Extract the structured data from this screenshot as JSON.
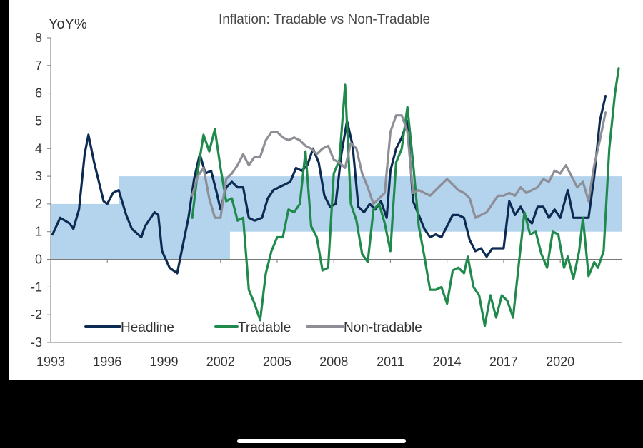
{
  "chart_data": {
    "type": "line",
    "title": "Inflation:  Tradable  vs  Non-Tradable",
    "ylabel": "YoY%",
    "xlabel": "",
    "ylim": [
      -3,
      8
    ],
    "yticks": [
      -3,
      -2,
      -1,
      0,
      1,
      2,
      3,
      4,
      5,
      6,
      7,
      8
    ],
    "xlim": [
      1993,
      2023.25
    ],
    "xticks": [
      "1993",
      "1996",
      "1999",
      "2002",
      "2005",
      "2008",
      "2011",
      "2014",
      "2017",
      "2020"
    ],
    "grid": false,
    "legend_position": "bottom-left",
    "target_band": {
      "color": "#b3d4ec",
      "segments": [
        {
          "x_start": 1993,
          "x_end": 1996.6,
          "low": 0,
          "high": 2
        },
        {
          "x_start": 1996.6,
          "x_end": 2002.5,
          "low": 0,
          "high": 3
        },
        {
          "x_start": 2002.5,
          "x_end": 2023.25,
          "low": 1,
          "high": 3
        }
      ]
    },
    "series": [
      {
        "name": "Headline",
        "color": "#0d2b52",
        "points": [
          [
            1993.1,
            0.9
          ],
          [
            1993.5,
            1.5
          ],
          [
            1994.0,
            1.3
          ],
          [
            1994.2,
            1.1
          ],
          [
            1994.5,
            1.8
          ],
          [
            1994.8,
            3.8
          ],
          [
            1995.0,
            4.5
          ],
          [
            1995.3,
            3.5
          ],
          [
            1995.8,
            2.1
          ],
          [
            1996.0,
            2.0
          ],
          [
            1996.3,
            2.4
          ],
          [
            1996.6,
            2.5
          ],
          [
            1997.0,
            1.6
          ],
          [
            1997.3,
            1.1
          ],
          [
            1997.8,
            0.8
          ],
          [
            1998.0,
            1.2
          ],
          [
            1998.5,
            1.7
          ],
          [
            1998.7,
            1.6
          ],
          [
            1998.9,
            0.3
          ],
          [
            1999.3,
            -0.3
          ],
          [
            1999.7,
            -0.5
          ],
          [
            2000.0,
            0.5
          ],
          [
            2000.3,
            1.5
          ],
          [
            2000.6,
            2.9
          ],
          [
            2000.9,
            3.8
          ],
          [
            2001.2,
            3.1
          ],
          [
            2001.5,
            3.2
          ],
          [
            2001.8,
            2.4
          ],
          [
            2002.0,
            1.8
          ],
          [
            2002.3,
            2.6
          ],
          [
            2002.6,
            2.8
          ],
          [
            2002.9,
            2.6
          ],
          [
            2003.2,
            2.6
          ],
          [
            2003.5,
            1.5
          ],
          [
            2003.8,
            1.4
          ],
          [
            2004.2,
            1.5
          ],
          [
            2004.5,
            2.2
          ],
          [
            2004.8,
            2.5
          ],
          [
            2005.1,
            2.6
          ],
          [
            2005.4,
            2.7
          ],
          [
            2005.7,
            2.8
          ],
          [
            2006.0,
            3.3
          ],
          [
            2006.3,
            3.2
          ],
          [
            2006.6,
            3.4
          ],
          [
            2006.9,
            4.0
          ],
          [
            2007.2,
            3.5
          ],
          [
            2007.5,
            2.3
          ],
          [
            2007.8,
            1.9
          ],
          [
            2008.1,
            2.0
          ],
          [
            2008.4,
            3.8
          ],
          [
            2008.7,
            5.0
          ],
          [
            2009.0,
            4.1
          ],
          [
            2009.3,
            1.9
          ],
          [
            2009.6,
            1.7
          ],
          [
            2009.9,
            2.0
          ],
          [
            2010.2,
            1.8
          ],
          [
            2010.5,
            2.1
          ],
          [
            2010.8,
            1.5
          ],
          [
            2011.0,
            3.2
          ],
          [
            2011.3,
            4.0
          ],
          [
            2011.6,
            4.4
          ],
          [
            2011.9,
            5.0
          ],
          [
            2012.2,
            2.1
          ],
          [
            2012.5,
            1.6
          ],
          [
            2012.8,
            1.1
          ],
          [
            2013.1,
            0.8
          ],
          [
            2013.4,
            0.9
          ],
          [
            2013.7,
            0.8
          ],
          [
            2014.0,
            1.2
          ],
          [
            2014.3,
            1.6
          ],
          [
            2014.6,
            1.6
          ],
          [
            2014.9,
            1.5
          ],
          [
            2015.2,
            0.7
          ],
          [
            2015.5,
            0.3
          ],
          [
            2015.8,
            0.4
          ],
          [
            2016.1,
            0.1
          ],
          [
            2016.4,
            0.4
          ],
          [
            2016.7,
            0.4
          ],
          [
            2017.0,
            0.4
          ],
          [
            2017.3,
            2.1
          ],
          [
            2017.6,
            1.6
          ],
          [
            2017.9,
            1.9
          ],
          [
            2018.2,
            1.5
          ],
          [
            2018.5,
            1.3
          ],
          [
            2018.8,
            1.9
          ],
          [
            2019.1,
            1.9
          ],
          [
            2019.4,
            1.5
          ],
          [
            2019.7,
            1.8
          ],
          [
            2020.0,
            1.5
          ],
          [
            2020.4,
            2.5
          ],
          [
            2020.7,
            1.5
          ],
          [
            2021.0,
            1.5
          ],
          [
            2021.5,
            1.5
          ],
          [
            2021.8,
            3.0
          ],
          [
            2022.1,
            5.0
          ],
          [
            2022.4,
            5.9
          ]
        ]
      },
      {
        "name": "Tradable",
        "color": "#1f8a4c",
        "points": [
          [
            2000.5,
            1.5
          ],
          [
            2000.8,
            3.2
          ],
          [
            2001.1,
            4.5
          ],
          [
            2001.4,
            3.9
          ],
          [
            2001.7,
            4.7
          ],
          [
            2002.0,
            3.3
          ],
          [
            2002.3,
            2.1
          ],
          [
            2002.6,
            2.2
          ],
          [
            2002.9,
            1.4
          ],
          [
            2003.2,
            1.5
          ],
          [
            2003.5,
            -1.1
          ],
          [
            2003.8,
            -1.6
          ],
          [
            2004.1,
            -2.2
          ],
          [
            2004.4,
            -0.5
          ],
          [
            2004.7,
            0.3
          ],
          [
            2005.0,
            0.8
          ],
          [
            2005.3,
            0.8
          ],
          [
            2005.6,
            1.8
          ],
          [
            2005.9,
            1.7
          ],
          [
            2006.2,
            2.0
          ],
          [
            2006.5,
            3.9
          ],
          [
            2006.8,
            1.2
          ],
          [
            2007.1,
            0.8
          ],
          [
            2007.4,
            -0.4
          ],
          [
            2007.7,
            -0.3
          ],
          [
            2008.0,
            3.1
          ],
          [
            2008.3,
            3.6
          ],
          [
            2008.6,
            6.3
          ],
          [
            2008.9,
            2.0
          ],
          [
            2009.2,
            1.4
          ],
          [
            2009.5,
            0.2
          ],
          [
            2009.8,
            -0.1
          ],
          [
            2010.1,
            1.8
          ],
          [
            2010.4,
            2.0
          ],
          [
            2010.7,
            1.3
          ],
          [
            2011.0,
            0.3
          ],
          [
            2011.3,
            3.5
          ],
          [
            2011.6,
            4.0
          ],
          [
            2011.9,
            5.5
          ],
          [
            2012.2,
            3.5
          ],
          [
            2012.5,
            1.2
          ],
          [
            2012.8,
            0.1
          ],
          [
            2013.1,
            -1.1
          ],
          [
            2013.4,
            -1.1
          ],
          [
            2013.7,
            -1.0
          ],
          [
            2014.0,
            -1.6
          ],
          [
            2014.3,
            -0.4
          ],
          [
            2014.6,
            -0.3
          ],
          [
            2014.9,
            -0.5
          ],
          [
            2015.1,
            0.1
          ],
          [
            2015.4,
            -1.0
          ],
          [
            2015.7,
            -1.3
          ],
          [
            2016.0,
            -2.4
          ],
          [
            2016.3,
            -1.3
          ],
          [
            2016.6,
            -2.1
          ],
          [
            2016.9,
            -1.3
          ],
          [
            2017.2,
            -1.5
          ],
          [
            2017.5,
            -2.1
          ],
          [
            2017.8,
            -0.2
          ],
          [
            2018.1,
            1.7
          ],
          [
            2018.4,
            0.9
          ],
          [
            2018.7,
            1.0
          ],
          [
            2019.0,
            0.2
          ],
          [
            2019.3,
            -0.3
          ],
          [
            2019.6,
            1.0
          ],
          [
            2019.9,
            0.9
          ],
          [
            2020.2,
            -0.3
          ],
          [
            2020.4,
            0.1
          ],
          [
            2020.7,
            -0.7
          ],
          [
            2021.0,
            0.3
          ],
          [
            2021.2,
            1.5
          ],
          [
            2021.5,
            -0.6
          ],
          [
            2021.8,
            -0.1
          ],
          [
            2022.0,
            -0.3
          ],
          [
            2022.3,
            0.3
          ],
          [
            2022.6,
            4.0
          ],
          [
            2022.9,
            6.0
          ],
          [
            2023.1,
            6.9
          ]
        ]
      },
      {
        "name": "Non-tradable",
        "color": "#8e8e96",
        "points": [
          [
            2000.5,
            2.3
          ],
          [
            2000.8,
            3.0
          ],
          [
            2001.1,
            3.3
          ],
          [
            2001.4,
            2.2
          ],
          [
            2001.7,
            1.5
          ],
          [
            2002.0,
            1.5
          ],
          [
            2002.3,
            2.9
          ],
          [
            2002.6,
            3.1
          ],
          [
            2002.9,
            3.4
          ],
          [
            2003.2,
            3.8
          ],
          [
            2003.5,
            3.4
          ],
          [
            2003.8,
            3.7
          ],
          [
            2004.1,
            3.7
          ],
          [
            2004.4,
            4.3
          ],
          [
            2004.7,
            4.6
          ],
          [
            2005.0,
            4.6
          ],
          [
            2005.3,
            4.4
          ],
          [
            2005.6,
            4.3
          ],
          [
            2005.9,
            4.4
          ],
          [
            2006.2,
            4.3
          ],
          [
            2006.5,
            4.1
          ],
          [
            2006.8,
            4.0
          ],
          [
            2007.1,
            3.8
          ],
          [
            2007.4,
            4.0
          ],
          [
            2007.7,
            4.1
          ],
          [
            2008.0,
            3.6
          ],
          [
            2008.3,
            3.5
          ],
          [
            2008.6,
            3.3
          ],
          [
            2008.9,
            4.2
          ],
          [
            2009.2,
            4.0
          ],
          [
            2009.5,
            3.1
          ],
          [
            2009.8,
            2.6
          ],
          [
            2010.1,
            2.0
          ],
          [
            2010.4,
            2.2
          ],
          [
            2010.7,
            2.4
          ],
          [
            2011.0,
            4.6
          ],
          [
            2011.3,
            5.2
          ],
          [
            2011.6,
            5.2
          ],
          [
            2011.9,
            4.6
          ],
          [
            2012.2,
            2.4
          ],
          [
            2012.5,
            2.5
          ],
          [
            2012.8,
            2.4
          ],
          [
            2013.1,
            2.3
          ],
          [
            2013.4,
            2.5
          ],
          [
            2013.7,
            2.7
          ],
          [
            2014.0,
            2.9
          ],
          [
            2014.3,
            2.7
          ],
          [
            2014.6,
            2.5
          ],
          [
            2014.9,
            2.4
          ],
          [
            2015.2,
            2.2
          ],
          [
            2015.5,
            1.5
          ],
          [
            2015.8,
            1.6
          ],
          [
            2016.1,
            1.7
          ],
          [
            2016.4,
            2.0
          ],
          [
            2016.7,
            2.3
          ],
          [
            2017.0,
            2.3
          ],
          [
            2017.3,
            2.4
          ],
          [
            2017.6,
            2.3
          ],
          [
            2017.9,
            2.6
          ],
          [
            2018.2,
            2.4
          ],
          [
            2018.5,
            2.5
          ],
          [
            2018.8,
            2.6
          ],
          [
            2019.1,
            2.9
          ],
          [
            2019.4,
            2.8
          ],
          [
            2019.7,
            3.2
          ],
          [
            2020.0,
            3.1
          ],
          [
            2020.3,
            3.4
          ],
          [
            2020.6,
            3.0
          ],
          [
            2020.9,
            2.6
          ],
          [
            2021.2,
            2.8
          ],
          [
            2021.5,
            2.1
          ],
          [
            2021.8,
            3.4
          ],
          [
            2022.1,
            4.3
          ],
          [
            2022.4,
            5.3
          ]
        ]
      }
    ]
  }
}
